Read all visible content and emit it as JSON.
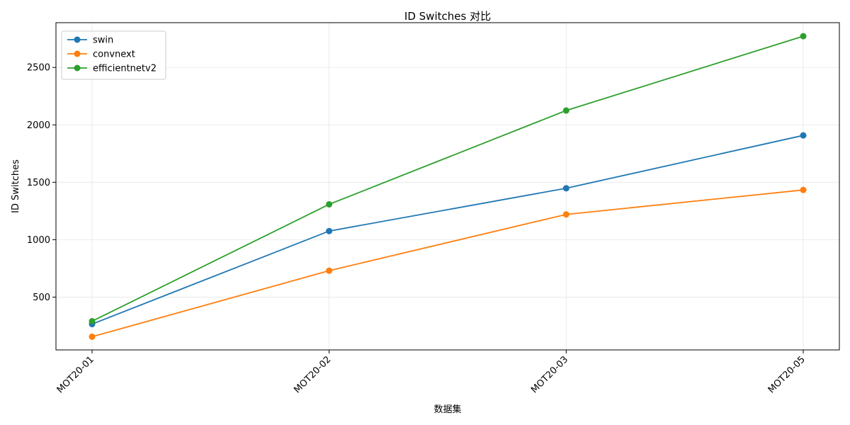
{
  "colors": {
    "swin": "#1f77b4",
    "convnext": "#ff7f0e",
    "efficientnetv2": "#2ca02c",
    "grid": "#e6e6e6",
    "axis": "#000000"
  },
  "chart_data": {
    "type": "line",
    "title": "ID Switches 对比",
    "xlabel": "数据集",
    "ylabel": "ID Switches",
    "categories": [
      "MOT20-01",
      "MOT20-02",
      "MOT20-03",
      "MOT20-05"
    ],
    "series": [
      {
        "name": "swin",
        "values": [
          265,
          1075,
          1448,
          1908
        ]
      },
      {
        "name": "convnext",
        "values": [
          155,
          730,
          1220,
          1433
        ]
      },
      {
        "name": "efficientnetv2",
        "values": [
          290,
          1308,
          2125,
          2772
        ]
      }
    ],
    "ylim": [
      40,
      2890
    ],
    "yticks": [
      500,
      1000,
      1500,
      2000,
      2500
    ],
    "grid": true,
    "legend_position": "top-left",
    "marker": "circle",
    "x_tick_rotation": 45
  }
}
